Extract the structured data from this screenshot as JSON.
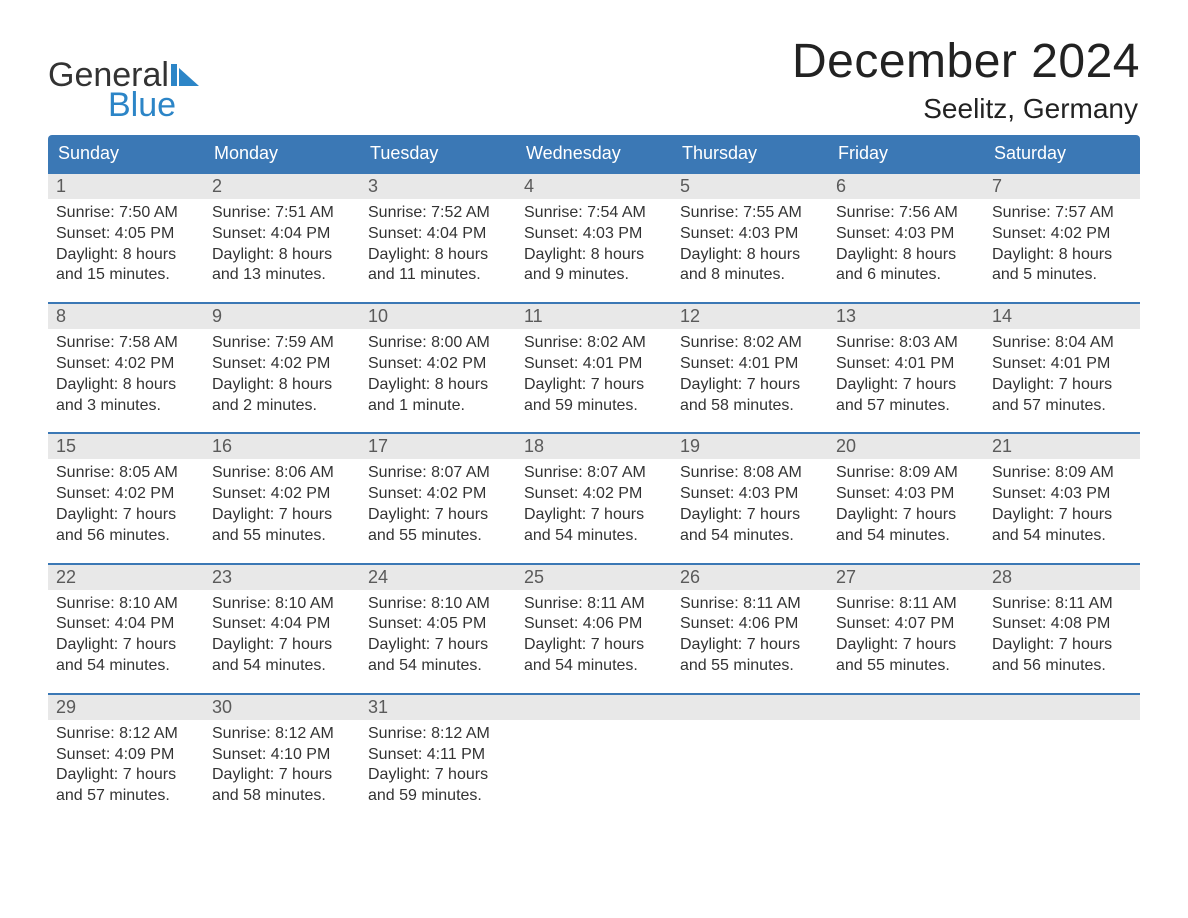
{
  "logo": {
    "line1": "General",
    "line2": "Blue",
    "accent_color": "#2c85c7"
  },
  "header": {
    "month": "December 2024",
    "location": "Seelitz, Germany"
  },
  "colors": {
    "header_bg": "#3b78b5",
    "week_divider": "#3b78b5",
    "daynum_bg": "#e8e8e8",
    "text": "#333333",
    "background": "#ffffff"
  },
  "day_labels": [
    "Sunday",
    "Monday",
    "Tuesday",
    "Wednesday",
    "Thursday",
    "Friday",
    "Saturday"
  ],
  "weeks": [
    [
      {
        "n": "1",
        "sunrise": "Sunrise: 7:50 AM",
        "sunset": "Sunset: 4:05 PM",
        "d1": "Daylight: 8 hours",
        "d2": "and 15 minutes."
      },
      {
        "n": "2",
        "sunrise": "Sunrise: 7:51 AM",
        "sunset": "Sunset: 4:04 PM",
        "d1": "Daylight: 8 hours",
        "d2": "and 13 minutes."
      },
      {
        "n": "3",
        "sunrise": "Sunrise: 7:52 AM",
        "sunset": "Sunset: 4:04 PM",
        "d1": "Daylight: 8 hours",
        "d2": "and 11 minutes."
      },
      {
        "n": "4",
        "sunrise": "Sunrise: 7:54 AM",
        "sunset": "Sunset: 4:03 PM",
        "d1": "Daylight: 8 hours",
        "d2": "and 9 minutes."
      },
      {
        "n": "5",
        "sunrise": "Sunrise: 7:55 AM",
        "sunset": "Sunset: 4:03 PM",
        "d1": "Daylight: 8 hours",
        "d2": "and 8 minutes."
      },
      {
        "n": "6",
        "sunrise": "Sunrise: 7:56 AM",
        "sunset": "Sunset: 4:03 PM",
        "d1": "Daylight: 8 hours",
        "d2": "and 6 minutes."
      },
      {
        "n": "7",
        "sunrise": "Sunrise: 7:57 AM",
        "sunset": "Sunset: 4:02 PM",
        "d1": "Daylight: 8 hours",
        "d2": "and 5 minutes."
      }
    ],
    [
      {
        "n": "8",
        "sunrise": "Sunrise: 7:58 AM",
        "sunset": "Sunset: 4:02 PM",
        "d1": "Daylight: 8 hours",
        "d2": "and 3 minutes."
      },
      {
        "n": "9",
        "sunrise": "Sunrise: 7:59 AM",
        "sunset": "Sunset: 4:02 PM",
        "d1": "Daylight: 8 hours",
        "d2": "and 2 minutes."
      },
      {
        "n": "10",
        "sunrise": "Sunrise: 8:00 AM",
        "sunset": "Sunset: 4:02 PM",
        "d1": "Daylight: 8 hours",
        "d2": "and 1 minute."
      },
      {
        "n": "11",
        "sunrise": "Sunrise: 8:02 AM",
        "sunset": "Sunset: 4:01 PM",
        "d1": "Daylight: 7 hours",
        "d2": "and 59 minutes."
      },
      {
        "n": "12",
        "sunrise": "Sunrise: 8:02 AM",
        "sunset": "Sunset: 4:01 PM",
        "d1": "Daylight: 7 hours",
        "d2": "and 58 minutes."
      },
      {
        "n": "13",
        "sunrise": "Sunrise: 8:03 AM",
        "sunset": "Sunset: 4:01 PM",
        "d1": "Daylight: 7 hours",
        "d2": "and 57 minutes."
      },
      {
        "n": "14",
        "sunrise": "Sunrise: 8:04 AM",
        "sunset": "Sunset: 4:01 PM",
        "d1": "Daylight: 7 hours",
        "d2": "and 57 minutes."
      }
    ],
    [
      {
        "n": "15",
        "sunrise": "Sunrise: 8:05 AM",
        "sunset": "Sunset: 4:02 PM",
        "d1": "Daylight: 7 hours",
        "d2": "and 56 minutes."
      },
      {
        "n": "16",
        "sunrise": "Sunrise: 8:06 AM",
        "sunset": "Sunset: 4:02 PM",
        "d1": "Daylight: 7 hours",
        "d2": "and 55 minutes."
      },
      {
        "n": "17",
        "sunrise": "Sunrise: 8:07 AM",
        "sunset": "Sunset: 4:02 PM",
        "d1": "Daylight: 7 hours",
        "d2": "and 55 minutes."
      },
      {
        "n": "18",
        "sunrise": "Sunrise: 8:07 AM",
        "sunset": "Sunset: 4:02 PM",
        "d1": "Daylight: 7 hours",
        "d2": "and 54 minutes."
      },
      {
        "n": "19",
        "sunrise": "Sunrise: 8:08 AM",
        "sunset": "Sunset: 4:03 PM",
        "d1": "Daylight: 7 hours",
        "d2": "and 54 minutes."
      },
      {
        "n": "20",
        "sunrise": "Sunrise: 8:09 AM",
        "sunset": "Sunset: 4:03 PM",
        "d1": "Daylight: 7 hours",
        "d2": "and 54 minutes."
      },
      {
        "n": "21",
        "sunrise": "Sunrise: 8:09 AM",
        "sunset": "Sunset: 4:03 PM",
        "d1": "Daylight: 7 hours",
        "d2": "and 54 minutes."
      }
    ],
    [
      {
        "n": "22",
        "sunrise": "Sunrise: 8:10 AM",
        "sunset": "Sunset: 4:04 PM",
        "d1": "Daylight: 7 hours",
        "d2": "and 54 minutes."
      },
      {
        "n": "23",
        "sunrise": "Sunrise: 8:10 AM",
        "sunset": "Sunset: 4:04 PM",
        "d1": "Daylight: 7 hours",
        "d2": "and 54 minutes."
      },
      {
        "n": "24",
        "sunrise": "Sunrise: 8:10 AM",
        "sunset": "Sunset: 4:05 PM",
        "d1": "Daylight: 7 hours",
        "d2": "and 54 minutes."
      },
      {
        "n": "25",
        "sunrise": "Sunrise: 8:11 AM",
        "sunset": "Sunset: 4:06 PM",
        "d1": "Daylight: 7 hours",
        "d2": "and 54 minutes."
      },
      {
        "n": "26",
        "sunrise": "Sunrise: 8:11 AM",
        "sunset": "Sunset: 4:06 PM",
        "d1": "Daylight: 7 hours",
        "d2": "and 55 minutes."
      },
      {
        "n": "27",
        "sunrise": "Sunrise: 8:11 AM",
        "sunset": "Sunset: 4:07 PM",
        "d1": "Daylight: 7 hours",
        "d2": "and 55 minutes."
      },
      {
        "n": "28",
        "sunrise": "Sunrise: 8:11 AM",
        "sunset": "Sunset: 4:08 PM",
        "d1": "Daylight: 7 hours",
        "d2": "and 56 minutes."
      }
    ],
    [
      {
        "n": "29",
        "sunrise": "Sunrise: 8:12 AM",
        "sunset": "Sunset: 4:09 PM",
        "d1": "Daylight: 7 hours",
        "d2": "and 57 minutes."
      },
      {
        "n": "30",
        "sunrise": "Sunrise: 8:12 AM",
        "sunset": "Sunset: 4:10 PM",
        "d1": "Daylight: 7 hours",
        "d2": "and 58 minutes."
      },
      {
        "n": "31",
        "sunrise": "Sunrise: 8:12 AM",
        "sunset": "Sunset: 4:11 PM",
        "d1": "Daylight: 7 hours",
        "d2": "and 59 minutes."
      },
      null,
      null,
      null,
      null
    ]
  ]
}
